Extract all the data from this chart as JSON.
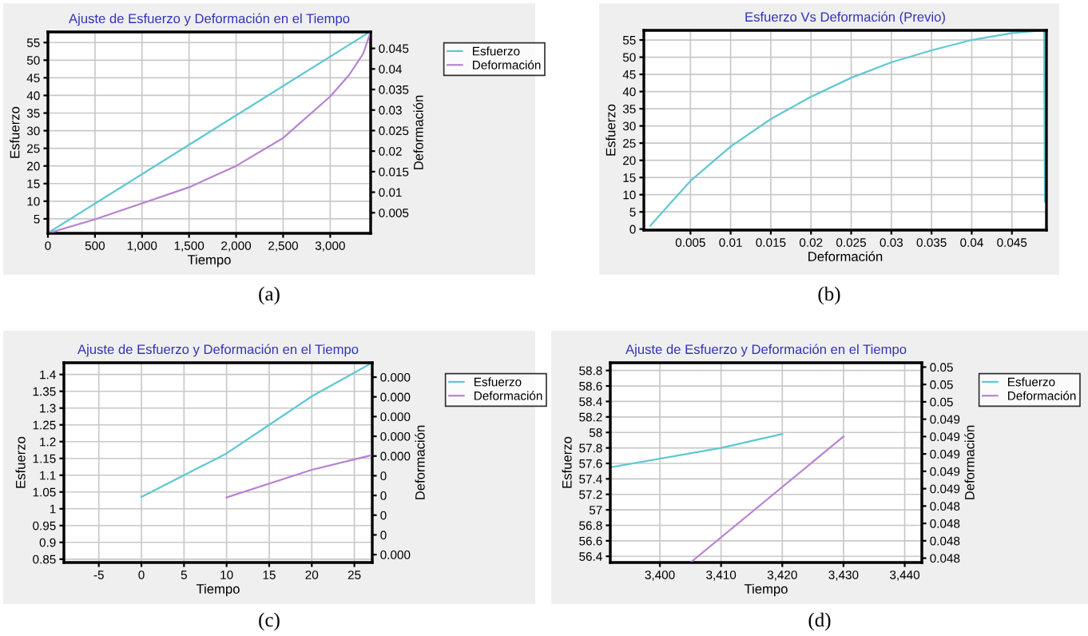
{
  "chart_data": [
    {
      "type": "line",
      "title": "Ajuste de Esfuerzo y Deformación en el Tiempo",
      "xlabel": "Tiempo",
      "ylabel": "Esfuerzo",
      "y2label": "Deformación",
      "xlim": [
        0,
        3430
      ],
      "xticks": [
        0,
        500,
        {
          "value": 1000,
          "label": "1,000"
        },
        {
          "value": 1500,
          "label": "1,500"
        },
        {
          "value": 2000,
          "label": "2,000"
        },
        {
          "value": 2500,
          "label": "2,500"
        },
        {
          "value": 3000,
          "label": "3,000"
        }
      ],
      "ylim": [
        0.9,
        58
      ],
      "yticks": [
        5,
        10,
        15,
        20,
        25,
        30,
        35,
        40,
        45,
        50,
        55
      ],
      "y2lim": [
        0,
        0.049
      ],
      "y2ticks": [
        0.005,
        0.01,
        0.015,
        0.02,
        0.025,
        0.03,
        0.035,
        0.04,
        0.045
      ],
      "series": [
        {
          "name": "Esfuerzo",
          "color": "#5fc8d2",
          "x": [
            0,
            3420
          ],
          "values": [
            1,
            58
          ]
        },
        {
          "name": "Deformación",
          "color": "#b882d2",
          "axis": "y2",
          "x": [
            0,
            500,
            1000,
            1500,
            2000,
            2500,
            3000,
            3200,
            3350,
            3430
          ],
          "values": [
            0,
            0.0034,
            0.0073,
            0.0112,
            0.0164,
            0.0232,
            0.0333,
            0.0385,
            0.0437,
            0.049
          ]
        }
      ],
      "grid": true,
      "legend": "top right",
      "annotations": [
        "(a)"
      ]
    },
    {
      "type": "line",
      "title": "Esfuerzo Vs Deformación (Previo)",
      "xlabel": "Deformación",
      "ylabel": "Esfuerzo",
      "xlim": [
        -0.0008,
        0.0493
      ],
      "xticks": [
        0.005,
        0.01,
        0.015,
        0.02,
        0.025,
        0.03,
        0.035,
        0.04,
        0.045
      ],
      "ylim": [
        -0.3,
        57.8
      ],
      "yticks": [
        0,
        5,
        10,
        15,
        20,
        25,
        30,
        35,
        40,
        45,
        50,
        55
      ],
      "series": [
        {
          "color": "#5fc8d2",
          "x": [
            0,
            0.005,
            0.01,
            0.015,
            0.02,
            0.025,
            0.03,
            0.035,
            0.04,
            0.045,
            0.049,
            0.0491
          ],
          "values": [
            1,
            14,
            24,
            32,
            38.5,
            44,
            48.5,
            52,
            55,
            57,
            57.8,
            8
          ]
        }
      ],
      "grid": true,
      "annotations": [
        "(b)"
      ]
    },
    {
      "type": "line",
      "title": "Ajuste de Esfuerzo y Deformación en el Tiempo",
      "xlabel": "Tiempo",
      "ylabel": "Esfuerzo",
      "y2label": "Deformación",
      "xlim": [
        -9.1,
        27.1
      ],
      "xticks": [
        -5,
        0,
        5,
        10,
        15,
        20,
        25
      ],
      "ylim": [
        0.84,
        1.435
      ],
      "yticks": [
        0.85,
        0.9,
        0.95,
        1,
        1.05,
        1.1,
        1.15,
        1.2,
        1.25,
        1.3,
        1.35,
        1.4
      ],
      "y2lim": [
        -4e-06,
        9.73e-05
      ],
      "y2ticks": [
        {
          "value": 0.0,
          "label": "0.000"
        },
        {
          "value": 1e-05,
          "label": "0"
        },
        {
          "value": 2e-05,
          "label": "0"
        },
        {
          "value": 3e-05,
          "label": "0"
        },
        {
          "value": 4e-05,
          "label": "0"
        },
        {
          "value": 5e-05,
          "label": "0.000"
        },
        {
          "value": 6e-05,
          "label": "0.000"
        },
        {
          "value": 7e-05,
          "label": "0.000"
        },
        {
          "value": 8e-05,
          "label": "0.000"
        },
        {
          "value": 9e-05,
          "label": "0.000"
        }
      ],
      "series": [
        {
          "name": "Esfuerzo",
          "color": "#5fc8d2",
          "x": [
            0,
            5,
            10,
            15,
            20,
            27.1
          ],
          "values": [
            1.035,
            1.1,
            1.165,
            1.25,
            1.335,
            1.435
          ]
        },
        {
          "name": "Deformación",
          "color": "#b882d2",
          "axis": "y2",
          "x": [
            10,
            20,
            27.1
          ],
          "values": [
            2.9e-05,
            4.3e-05,
            5.05e-05
          ]
        }
      ],
      "grid": true,
      "legend": "top right",
      "annotations": [
        "(c)"
      ]
    },
    {
      "type": "line",
      "title": "Ajuste de Esfuerzo y Deformación en el Tiempo",
      "xlabel": "Tiempo",
      "ylabel": "Esfuerzo",
      "y2label": "Deformación",
      "xlim": [
        3391.9,
        3442.8
      ],
      "xticks": [
        {
          "value": 3400,
          "label": "3,400"
        },
        {
          "value": 3410,
          "label": "3,410"
        },
        {
          "value": 3420,
          "label": "3,420"
        },
        {
          "value": 3430,
          "label": "3,430"
        },
        {
          "value": 3440,
          "label": "3,440"
        }
      ],
      "ylim": [
        56.32,
        58.9
      ],
      "yticks": [
        56.4,
        56.6,
        56.8,
        57,
        57.2,
        57.4,
        57.6,
        57.8,
        58,
        58.2,
        58.4,
        58.6,
        58.8
      ],
      "y2lim": [
        0.0477,
        0.05
      ],
      "y2ticks": [
        {
          "value": 0.04775,
          "label": "0.048"
        },
        {
          "value": 0.04795,
          "label": "0.048"
        },
        {
          "value": 0.04815,
          "label": "0.048"
        },
        {
          "value": 0.04835,
          "label": "0.048"
        },
        {
          "value": 0.04855,
          "label": "0.049"
        },
        {
          "value": 0.04875,
          "label": "0.049"
        },
        {
          "value": 0.04895,
          "label": "0.049"
        },
        {
          "value": 0.04915,
          "label": "0.049"
        },
        {
          "value": 0.04935,
          "label": "0.049"
        },
        {
          "value": 0.04955,
          "label": "0.05"
        },
        {
          "value": 0.04975,
          "label": "0.05"
        },
        {
          "value": 0.04995,
          "label": "0.05"
        }
      ],
      "series": [
        {
          "name": "Esfuerzo",
          "color": "#5fc8d2",
          "x": [
            3392,
            3410,
            3420
          ],
          "values": [
            57.55,
            57.8,
            57.98
          ]
        },
        {
          "name": "Deformación",
          "color": "#b882d2",
          "axis": "y2",
          "x": [
            3405,
            3430
          ],
          "values": [
            0.0477,
            0.04915
          ]
        }
      ],
      "grid": true,
      "legend": "top right",
      "annotations": [
        "(d)"
      ]
    }
  ]
}
